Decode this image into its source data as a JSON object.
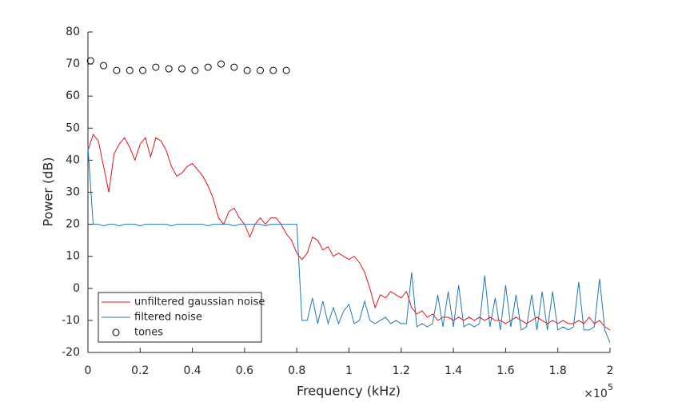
{
  "chart_data": {
    "type": "line",
    "xlabel": "Frequency (kHz)",
    "ylabel": "Power (dB)",
    "x_multiplier": "×10",
    "x_multiplier_exponent": "5",
    "xlim": [
      0,
      2
    ],
    "xticks": [
      0,
      0.2,
      0.4,
      0.6,
      0.8,
      1,
      1.2,
      1.4,
      1.6,
      1.8,
      2
    ],
    "ylim": [
      -20,
      80
    ],
    "yticks": [
      -20,
      -10,
      0,
      10,
      20,
      30,
      40,
      50,
      60,
      70,
      80
    ],
    "legend": "lower left",
    "x": [
      0,
      0.02,
      0.04,
      0.06,
      0.08,
      0.1,
      0.12,
      0.14,
      0.16,
      0.18,
      0.2,
      0.22,
      0.24,
      0.26,
      0.28,
      0.3,
      0.32,
      0.34,
      0.36,
      0.38,
      0.4,
      0.42,
      0.44,
      0.46,
      0.48,
      0.5,
      0.52,
      0.54,
      0.56,
      0.58,
      0.6,
      0.62,
      0.64,
      0.66,
      0.68,
      0.7,
      0.72,
      0.74,
      0.76,
      0.78,
      0.8,
      0.82,
      0.84,
      0.86,
      0.88,
      0.9,
      0.92,
      0.94,
      0.96,
      0.98,
      1,
      1.02,
      1.04,
      1.06,
      1.08,
      1.1,
      1.12,
      1.14,
      1.16,
      1.18,
      1.2,
      1.22,
      1.24,
      1.26,
      1.28,
      1.3,
      1.32,
      1.34,
      1.36,
      1.38,
      1.4,
      1.42,
      1.44,
      1.46,
      1.48,
      1.5,
      1.52,
      1.54,
      1.56,
      1.58,
      1.6,
      1.62,
      1.64,
      1.66,
      1.68,
      1.7,
      1.72,
      1.74,
      1.76,
      1.78,
      1.8,
      1.82,
      1.84,
      1.86,
      1.88,
      1.9,
      1.92,
      1.94,
      1.96,
      1.98,
      2
    ],
    "series": [
      {
        "name": "unfiltered gaussian noise",
        "color": "#e3141b",
        "type": "line",
        "values": [
          43,
          48,
          46,
          38,
          30,
          42,
          45,
          47,
          44,
          40,
          45,
          47,
          41,
          47,
          46,
          43,
          38,
          35,
          36,
          38,
          39,
          37,
          35,
          32,
          28,
          22,
          20,
          24,
          25,
          22,
          20,
          16,
          20,
          22,
          20,
          22,
          22,
          20,
          17,
          15,
          11,
          9,
          11,
          16,
          15,
          12,
          13,
          10,
          11,
          10,
          9,
          10,
          8,
          5,
          0,
          -6,
          -2,
          -3,
          -1,
          -2,
          -3,
          -1,
          -6,
          -8,
          -7,
          -9,
          -8,
          -10,
          -9,
          -9,
          -10,
          -9,
          -10,
          -9,
          -10,
          -9,
          -10,
          -9,
          -10,
          -10,
          -11,
          -10,
          -9,
          -10,
          -11,
          -10,
          -9,
          -10,
          -11,
          -10,
          -11,
          -10,
          -11,
          -11,
          -10,
          -11,
          -9,
          -11,
          -10,
          -12,
          -13
        ]
      },
      {
        "name": "filtered noise",
        "color": "#1f77b4",
        "type": "line",
        "values": [
          44,
          20,
          20,
          19.5,
          20,
          20,
          19.5,
          20,
          20,
          20,
          19.5,
          20,
          20,
          20,
          20,
          20,
          19.5,
          20,
          20,
          20,
          20,
          20,
          20,
          19.5,
          20,
          20,
          20,
          20,
          19.5,
          20,
          20,
          20,
          20,
          20,
          19.5,
          20,
          20,
          20,
          20,
          20,
          20,
          -10,
          -10,
          -3,
          -11,
          -4,
          -11,
          -6,
          -11,
          -7,
          -5,
          -11,
          -10,
          -4,
          -10,
          -11,
          -10,
          -9,
          -11,
          -10,
          -11,
          -11,
          5,
          -12,
          -11,
          -12,
          -11,
          -2,
          -12,
          -1,
          -12,
          1,
          -12,
          -11,
          -12,
          -11,
          4,
          -12,
          -3,
          -13,
          1,
          -12,
          -2,
          -13,
          -12,
          -2,
          -13,
          -1,
          -13,
          -1,
          -13,
          -12,
          -13,
          -12,
          2,
          -13,
          -13,
          -12,
          3,
          -13,
          -17
        ]
      },
      {
        "name": "tones",
        "color": "#000000",
        "type": "scatter",
        "x": [
          0.01,
          0.06,
          0.11,
          0.16,
          0.21,
          0.26,
          0.31,
          0.36,
          0.41,
          0.46,
          0.51,
          0.56,
          0.61,
          0.66,
          0.71,
          0.76
        ],
        "values": [
          71,
          69.5,
          68,
          68,
          68,
          69,
          68.5,
          68.5,
          68,
          69,
          70,
          69,
          68,
          68,
          68,
          68
        ]
      }
    ]
  }
}
